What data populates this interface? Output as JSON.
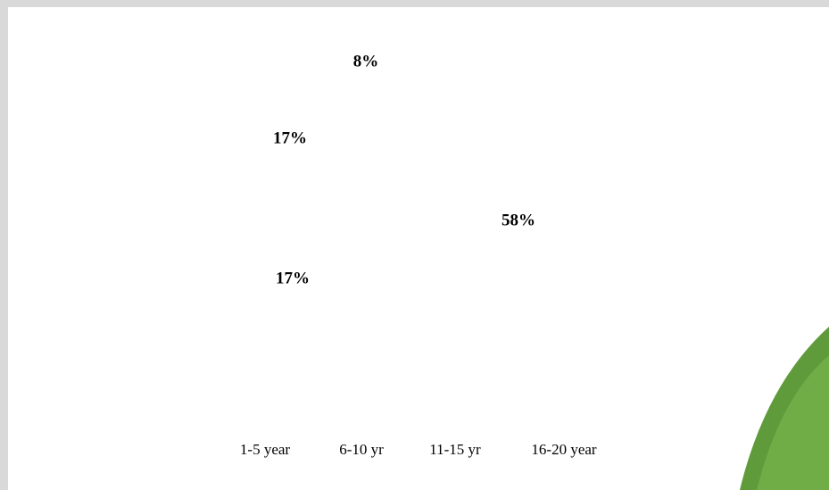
{
  "chart_data": {
    "type": "pie",
    "categories": [
      "1-5 year",
      "6-10 yr",
      "11-15 yr",
      "16-20 year"
    ],
    "values": [
      8,
      17,
      58,
      17
    ],
    "value_labels": [
      "8%",
      "17%",
      "58%",
      "17%"
    ],
    "color": "#ffffff"
  }
}
